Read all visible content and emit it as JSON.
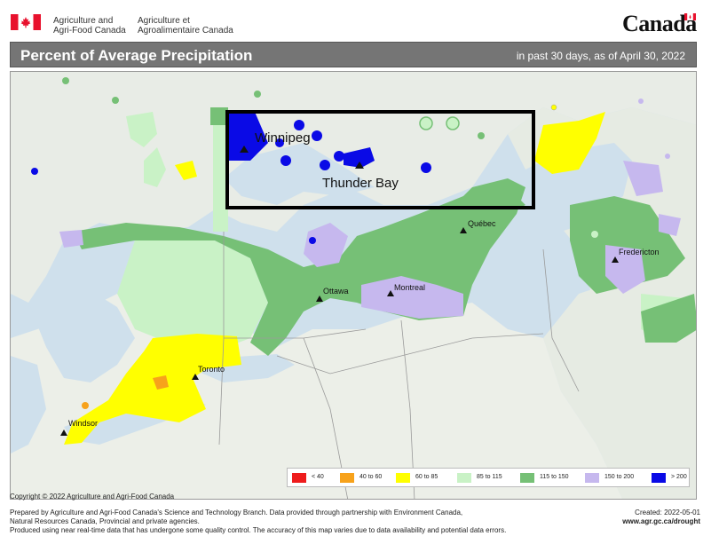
{
  "header": {
    "dept_en_line1": "Agriculture and",
    "dept_en_line2": "Agri-Food Canada",
    "dept_fr_line1": "Agriculture et",
    "dept_fr_line2": "Agroalimentaire Canada",
    "wordmark": "Canada"
  },
  "title": {
    "main": "Percent of Average Precipitation",
    "subtitle": "in past 30 days, as of April 30, 2022"
  },
  "map": {
    "highlight_box_color": "#000000",
    "cities": [
      {
        "name": "Winnipeg"
      },
      {
        "name": "Thunder Bay"
      },
      {
        "name": "Québec"
      },
      {
        "name": "Fredericton"
      },
      {
        "name": "Ottawa"
      },
      {
        "name": "Montreal"
      },
      {
        "name": "Toronto"
      },
      {
        "name": "Windsor"
      }
    ]
  },
  "legend": [
    {
      "label": "< 40",
      "color": "#ee1c1c"
    },
    {
      "label": "40 to 60",
      "color": "#f7a21b"
    },
    {
      "label": "60 to 85",
      "color": "#ffff00"
    },
    {
      "label": "85 to 115",
      "color": "#c9f2c6"
    },
    {
      "label": "115 to 150",
      "color": "#76c076"
    },
    {
      "label": "150 to 200",
      "color": "#c6b8ee"
    },
    {
      "label": "> 200",
      "color": "#0a0ae6"
    }
  ],
  "copyright": "Copyright © 2022 Agriculture and Agri-Food Canada",
  "footer": {
    "line1": "Prepared by Agriculture and Agri-Food Canada's Science and Technology Branch. Data provided through partnership with Environment Canada,",
    "line2": "Natural Resources Canada, Provincial and private agencies.",
    "line3": "Produced using near real-time data that has undergone some quality control. The accuracy of this map varies due to data availability and potential data errors.",
    "created": "Created: 2022-05-01",
    "url": "www.agr.gc.ca/drought"
  }
}
